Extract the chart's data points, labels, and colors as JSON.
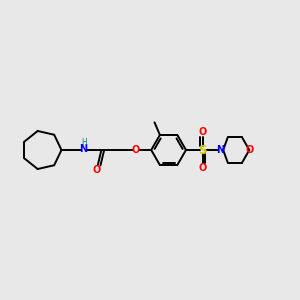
{
  "background_color": "#e8e8e8",
  "bond_color": "#000000",
  "N_color": "#0000ff",
  "H_color": "#008080",
  "O_color": "#ff0000",
  "S_color": "#cccc00",
  "figsize": [
    3.0,
    3.0
  ],
  "dpi": 100,
  "xlim": [
    0,
    10
  ],
  "ylim": [
    2,
    8
  ]
}
